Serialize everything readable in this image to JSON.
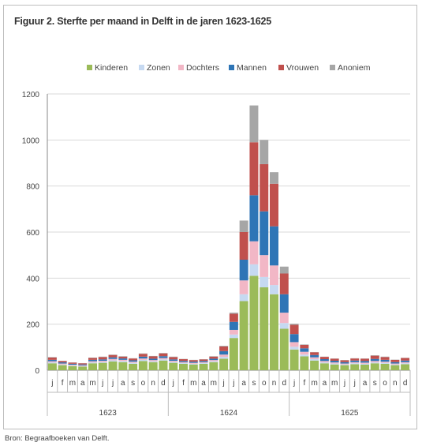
{
  "title": "Figuur 2. Sterfte per maand in Delft in de jaren 1623-1625",
  "source": "Bron: Begraafboeken van Delft.",
  "chart_data": {
    "type": "bar",
    "stacked": true,
    "ylim": [
      0,
      1200
    ],
    "yticks": [
      0,
      200,
      400,
      600,
      800,
      1000,
      1200
    ],
    "grid": true,
    "legend_position": "top",
    "months": [
      "j",
      "f",
      "m",
      "a",
      "m",
      "j",
      "j",
      "a",
      "s",
      "o",
      "n",
      "d",
      "j",
      "f",
      "m",
      "a",
      "m",
      "j",
      "j",
      "a",
      "s",
      "o",
      "n",
      "d",
      "j",
      "f",
      "m",
      "a",
      "m",
      "j",
      "j",
      "a",
      "s",
      "o",
      "n",
      "d"
    ],
    "years": [
      "1623",
      "1624",
      "1625"
    ],
    "series": [
      {
        "name": "Kinderen",
        "color": "#9bbb59",
        "values": [
          30,
          22,
          18,
          16,
          30,
          32,
          38,
          35,
          28,
          40,
          35,
          42,
          32,
          28,
          25,
          28,
          35,
          50,
          140,
          300,
          410,
          360,
          330,
          180,
          90,
          60,
          42,
          30,
          25,
          22,
          26,
          24,
          30,
          28,
          22,
          26
        ]
      },
      {
        "name": "Zonen",
        "color": "#c6d9f1",
        "values": [
          4,
          3,
          3,
          2,
          4,
          4,
          5,
          5,
          4,
          5,
          4,
          5,
          4,
          3,
          3,
          3,
          4,
          8,
          15,
          30,
          50,
          45,
          40,
          25,
          12,
          8,
          6,
          4,
          4,
          3,
          4,
          4,
          4,
          4,
          3,
          4
        ]
      },
      {
        "name": "Dochters",
        "color": "#f2b7c6",
        "values": [
          5,
          4,
          3,
          3,
          5,
          5,
          6,
          5,
          5,
          6,
          5,
          6,
          5,
          4,
          4,
          4,
          5,
          10,
          20,
          60,
          100,
          95,
          85,
          45,
          20,
          12,
          8,
          6,
          5,
          4,
          5,
          5,
          6,
          5,
          4,
          5
        ]
      },
      {
        "name": "Mannen",
        "color": "#2e75b6",
        "values": [
          6,
          5,
          4,
          4,
          6,
          6,
          7,
          6,
          6,
          8,
          6,
          8,
          6,
          5,
          5,
          5,
          6,
          15,
          35,
          90,
          200,
          190,
          170,
          80,
          35,
          15,
          10,
          8,
          7,
          6,
          7,
          7,
          9,
          8,
          6,
          7
        ]
      },
      {
        "name": "Vrouwen",
        "color": "#c0504d",
        "values": [
          10,
          6,
          5,
          5,
          8,
          10,
          10,
          8,
          8,
          12,
          10,
          12,
          10,
          8,
          7,
          7,
          9,
          20,
          35,
          120,
          230,
          205,
          185,
          90,
          40,
          15,
          12,
          10,
          9,
          8,
          9,
          10,
          14,
          12,
          10,
          11
        ]
      },
      {
        "name": "Anoniem",
        "color": "#a6a6a6",
        "values": [
          2,
          1,
          1,
          1,
          2,
          2,
          2,
          2,
          1,
          2,
          2,
          2,
          2,
          1,
          1,
          1,
          2,
          3,
          5,
          50,
          160,
          105,
          50,
          30,
          5,
          2,
          1,
          1,
          1,
          1,
          1,
          1,
          2,
          2,
          1,
          1
        ]
      }
    ]
  }
}
